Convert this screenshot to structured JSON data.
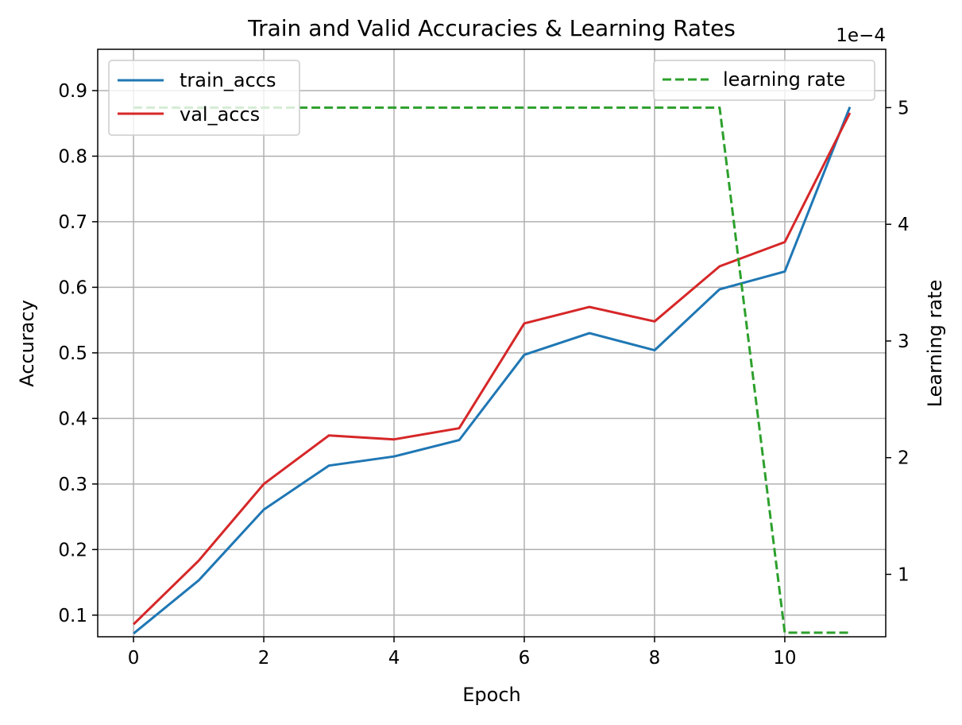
{
  "chart_data": {
    "type": "line",
    "title": "Train and Valid Accuracies & Learning Rates",
    "xlabel": "Epoch",
    "ylabel": "Accuracy",
    "y2label": "Learning rate",
    "y2_offset_text": "1e−4",
    "xlim": [
      -0.55,
      11.55
    ],
    "ylim": [
      0.067,
      0.963
    ],
    "y2lim": [
      0.465,
      5.5
    ],
    "x_ticks": [
      0,
      2,
      4,
      6,
      8,
      10
    ],
    "x_tick_labels": [
      "0",
      "2",
      "4",
      "6",
      "8",
      "10"
    ],
    "y_ticks": [
      0.1,
      0.2,
      0.3,
      0.4,
      0.5,
      0.6,
      0.7,
      0.8,
      0.9
    ],
    "y_tick_labels": [
      "0.1",
      "0.2",
      "0.3",
      "0.4",
      "0.5",
      "0.6",
      "0.7",
      "0.8",
      "0.9"
    ],
    "y2_ticks": [
      1,
      2,
      3,
      4,
      5
    ],
    "y2_tick_labels": [
      "1",
      "2",
      "3",
      "4",
      "5"
    ],
    "grid": true,
    "x": [
      0,
      1,
      2,
      3,
      4,
      5,
      6,
      7,
      8,
      9,
      10,
      11
    ],
    "series": [
      {
        "name": "train_accs",
        "axis": "left",
        "color": "#1f77b4",
        "style": "solid",
        "values": [
          0.072,
          0.153,
          0.261,
          0.328,
          0.342,
          0.367,
          0.497,
          0.53,
          0.504,
          0.597,
          0.624,
          0.875
        ]
      },
      {
        "name": "val_accs",
        "axis": "left",
        "color": "#d62728",
        "style": "solid",
        "values": [
          0.086,
          0.183,
          0.3,
          0.374,
          0.368,
          0.385,
          0.545,
          0.57,
          0.548,
          0.632,
          0.669,
          0.866
        ]
      },
      {
        "name": "learning rate",
        "axis": "right",
        "color": "#2ca02c",
        "style": "dashed",
        "values": [
          5.0,
          5.0,
          5.0,
          5.0,
          5.0,
          5.0,
          5.0,
          5.0,
          5.0,
          5.0,
          0.5,
          0.5
        ]
      }
    ],
    "legends": [
      {
        "position": "upper-left",
        "entries": [
          "train_accs",
          "val_accs"
        ]
      },
      {
        "position": "upper-right",
        "entries": [
          "learning rate"
        ]
      }
    ]
  }
}
